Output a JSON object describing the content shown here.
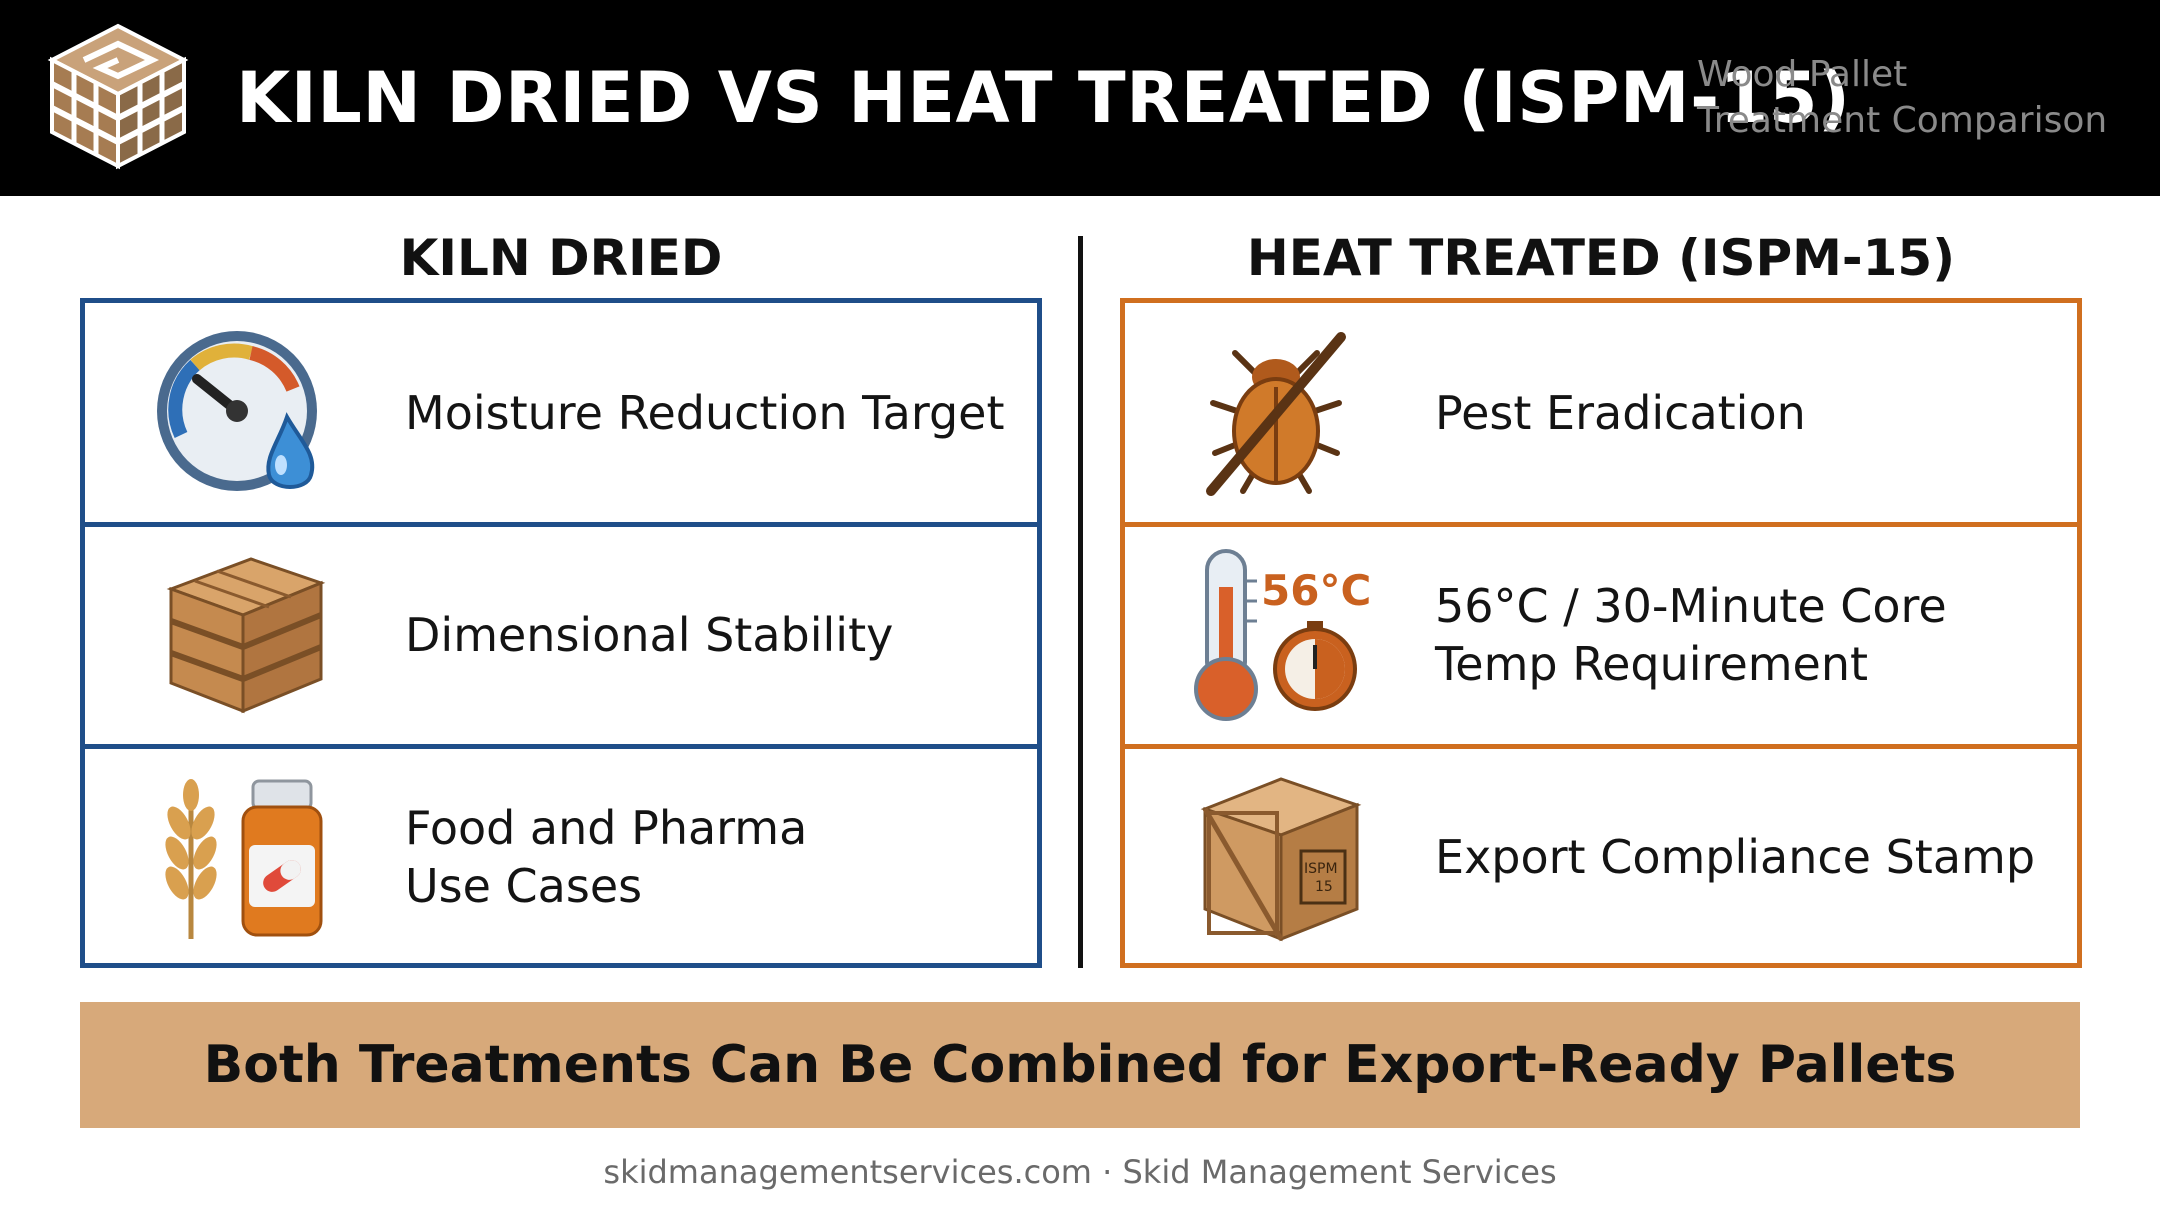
{
  "header": {
    "title": "KILN DRIED VS HEAT TREATED (ISPM-15)",
    "subtitle_line1": "Wood Pallet",
    "subtitle_line2": "Treatment Comparison",
    "logo_icon": "pallet-maze-logo-icon"
  },
  "left_column": {
    "heading": "KILN DRIED",
    "border_color": "#1f4e89",
    "items": [
      {
        "icon": "moisture-gauge-icon",
        "lines": [
          "Moisture Reduction Target"
        ]
      },
      {
        "icon": "pallet-stack-icon",
        "lines": [
          "Dimensional Stability"
        ]
      },
      {
        "icon": "wheat-and-pill-bottle-icon",
        "lines": [
          "Food and Pharma",
          "Use Cases"
        ]
      }
    ]
  },
  "right_column": {
    "heading": "HEAT TREATED (ISPM-15)",
    "border_color": "#d06f1f",
    "items": [
      {
        "icon": "crossed-out-bug-icon",
        "lines": [
          "Pest Eradication"
        ]
      },
      {
        "icon": "thermometer-timer-icon",
        "icon_text": "56°C",
        "lines": [
          "56°C / 30-Minute Core",
          "Temp Requirement"
        ]
      },
      {
        "icon": "ispm-stamped-crate-icon",
        "icon_text_line1": "ISPM",
        "icon_text_line2": "15",
        "lines": [
          "Export Compliance Stamp"
        ]
      }
    ]
  },
  "banner": {
    "text": "Both Treatments Can Be Combined for Export-Ready Pallets",
    "color": "#d7a97a"
  },
  "footer": {
    "text": "skidmanagementservices.com · Skid Management Services"
  }
}
